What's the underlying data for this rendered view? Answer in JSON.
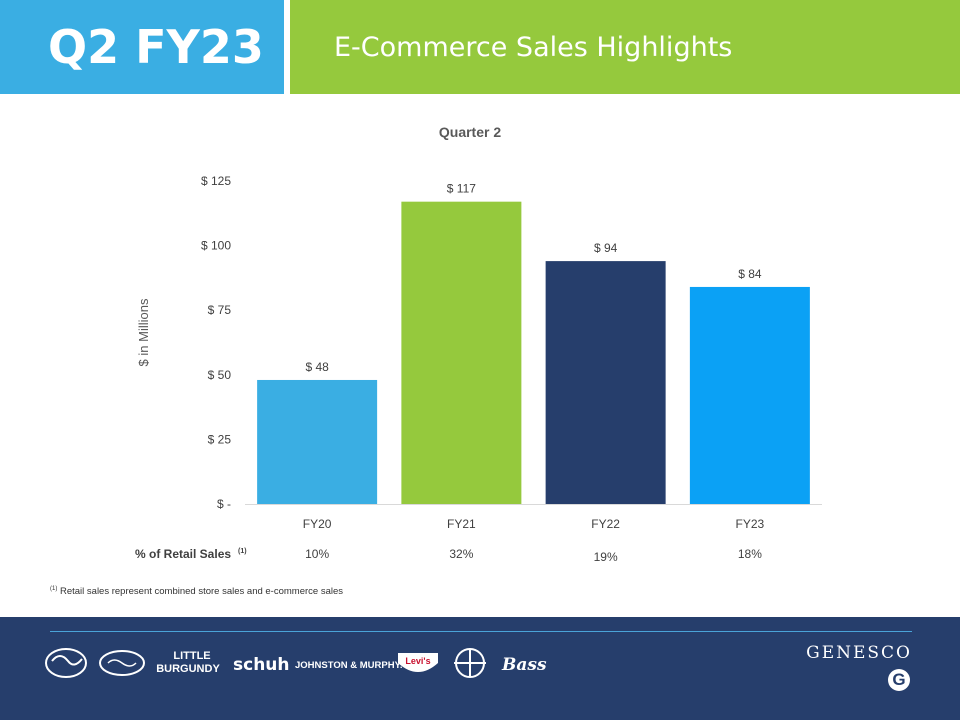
{
  "header": {
    "period": "Q2 FY23",
    "title": "E-Commerce Sales Highlights"
  },
  "chart_data": {
    "type": "bar",
    "title": "Quarter 2",
    "ylabel": "$ in Millions",
    "categories": [
      "FY20",
      "FY21",
      "FY22",
      "FY23"
    ],
    "values": [
      48,
      117,
      94,
      84
    ],
    "data_labels": [
      "$ 48",
      "$ 117",
      "$ 94",
      "$ 84"
    ],
    "colors": [
      "#3aaee3",
      "#95c93d",
      "#263e6c",
      "#0ba1f5"
    ],
    "ylim": [
      0,
      125
    ],
    "yticks": [
      0,
      25,
      50,
      75,
      100,
      125
    ],
    "ytick_labels": [
      "$ -",
      "$ 25",
      "$ 50",
      "$ 75",
      "$ 100",
      "$ 125"
    ],
    "grid": false
  },
  "retail_share": {
    "label": "% of Retail Sales",
    "label_note": "(1)",
    "values": [
      "10%",
      "32%",
      "19%",
      "18%"
    ]
  },
  "footnote": {
    "marker": "(1)",
    "text": "Retail sales represent combined store sales and e-commerce sales"
  },
  "footer": {
    "brands": [
      "Journeys",
      "Journeys Kidz",
      "Little Burgundy",
      "schuh",
      "Johnston & Murphy",
      "Levi's",
      "Dockers",
      "Bass"
    ],
    "company": "GENESCO",
    "mark": "G"
  }
}
